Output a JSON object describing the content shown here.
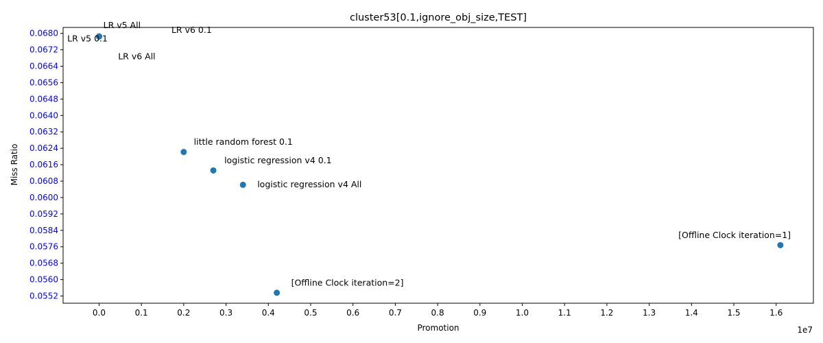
{
  "chart_data": {
    "type": "scatter",
    "title": "cluster53[0.1,ignore_obj_size,TEST]",
    "xlabel": "Promotion",
    "ylabel": "Miss Ratio",
    "x_offset_text": "1e7",
    "xlim": [
      -0.085,
      1.688
    ],
    "ylim": [
      0.05485,
      0.06829
    ],
    "x_ticks": [
      0.0,
      0.1,
      0.2,
      0.3,
      0.4,
      0.5,
      0.6,
      0.7,
      0.8,
      0.9,
      1.0,
      1.1,
      1.2,
      1.3,
      1.4,
      1.5,
      1.6
    ],
    "x_tick_labels": [
      "0.0",
      "0.1",
      "0.2",
      "0.3",
      "0.4",
      "0.5",
      "0.6",
      "0.7",
      "0.8",
      "0.9",
      "1.0",
      "1.1",
      "1.2",
      "1.3",
      "1.4",
      "1.5",
      "1.6"
    ],
    "y_ticks": [
      0.0552,
      0.056,
      0.0568,
      0.0576,
      0.0584,
      0.0592,
      0.06,
      0.0608,
      0.0616,
      0.0624,
      0.0632,
      0.064,
      0.0648,
      0.0656,
      0.0664,
      0.0672,
      0.068
    ],
    "y_tick_labels": [
      "0.0552",
      "0.0560",
      "0.0568",
      "0.0576",
      "0.0584",
      "0.0592",
      "0.0600",
      "0.0608",
      "0.0616",
      "0.0624",
      "0.0632",
      "0.0640",
      "0.0648",
      "0.0656",
      "0.0664",
      "0.0672",
      "0.0680"
    ],
    "grid": false,
    "colors": {
      "marker": "#1f77b4",
      "y_tick_label": "#0000ff",
      "axis": "#000000"
    },
    "points": [
      {
        "label": "LR v5 All",
        "x": 0.0,
        "y": 0.06785,
        "label_dx": 0.01,
        "label_dy": 0.0004
      },
      {
        "label": "LR v5 0.1",
        "x": 0.0,
        "y": 0.06785,
        "label_dx": -0.075,
        "label_dy": -0.00025
      },
      {
        "label": "LR v6 0.1",
        "x": 0.0,
        "y": 0.06785,
        "label_dx": 0.171,
        "label_dy": 0.00018
      },
      {
        "label": "LR v6 All",
        "x": 0.0,
        "y": 0.06785,
        "label_dx": 0.045,
        "label_dy": -0.00112
      },
      {
        "label": "little random forest 0.1",
        "x": 0.2,
        "y": 0.06222,
        "label_dx": 0.024,
        "label_dy": 0.00035
      },
      {
        "label": "logistic regression v4 0.1",
        "x": 0.27,
        "y": 0.06132,
        "label_dx": 0.026,
        "label_dy": 0.00035
      },
      {
        "label": "logistic regression v4 All",
        "x": 0.34,
        "y": 0.06062,
        "label_dx": 0.034,
        "label_dy": -0.00012
      },
      {
        "label": "[Offline Clock iteration=1]",
        "x": 1.61,
        "y": 0.05768,
        "label_dx": -0.241,
        "label_dy": 0.00035
      },
      {
        "label": "[Offline Clock iteration=2]",
        "x": 0.42,
        "y": 0.05536,
        "label_dx": 0.034,
        "label_dy": 0.00035
      }
    ]
  }
}
